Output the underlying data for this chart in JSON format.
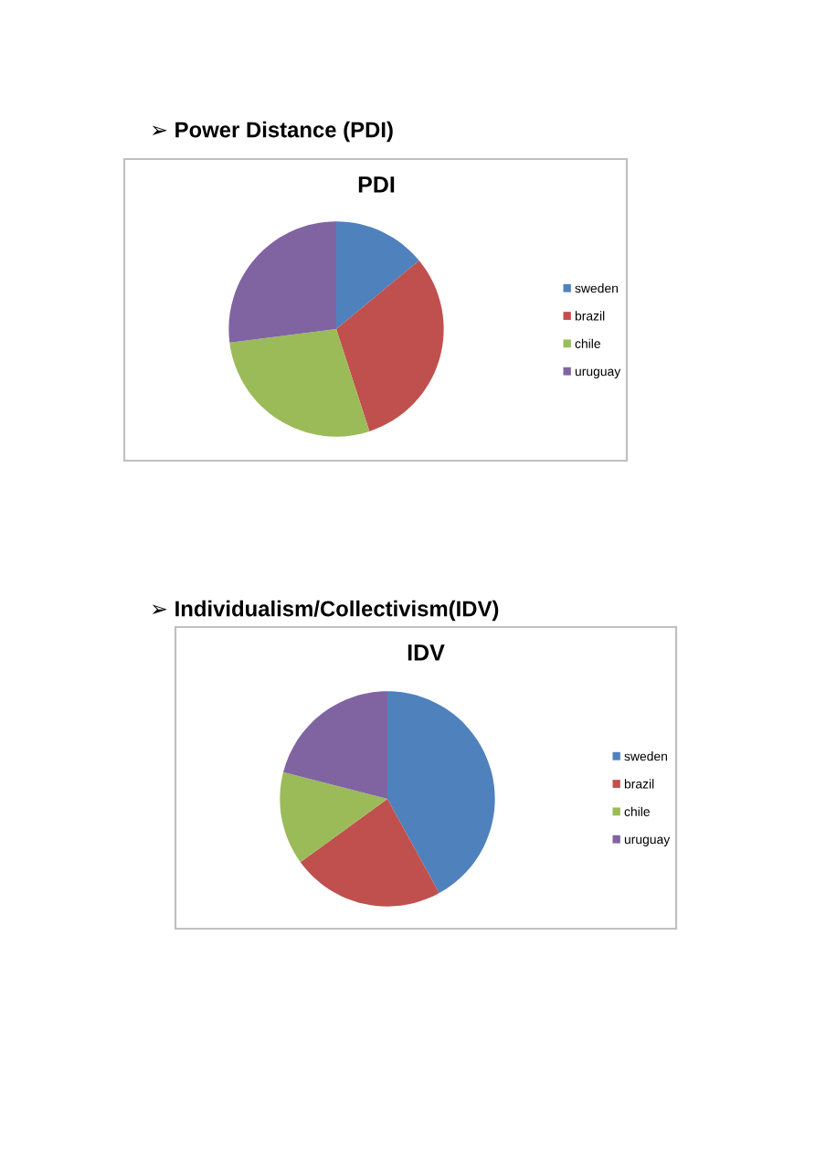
{
  "chart_data": [
    {
      "type": "pie",
      "title": "PDI",
      "annotations": [
        "➢ Power Distance (PDI)"
      ],
      "categories": [
        "sweden",
        "brazil",
        "chile",
        "uruguay"
      ],
      "values": [
        14,
        31,
        28,
        27
      ],
      "colors": [
        "#4f81bd",
        "#c0504d",
        "#9bbb59",
        "#8064a2"
      ],
      "legend": "right"
    },
    {
      "type": "pie",
      "title": "IDV",
      "annotations": [
        "➢ Individualism/Collectivism(IDV)"
      ],
      "categories": [
        "sweden",
        "brazil",
        "chile",
        "uruguay"
      ],
      "values": [
        42,
        23,
        14,
        21
      ],
      "colors": [
        "#4f81bd",
        "#c0504d",
        "#9bbb59",
        "#8064a2"
      ],
      "legend": "right"
    }
  ]
}
